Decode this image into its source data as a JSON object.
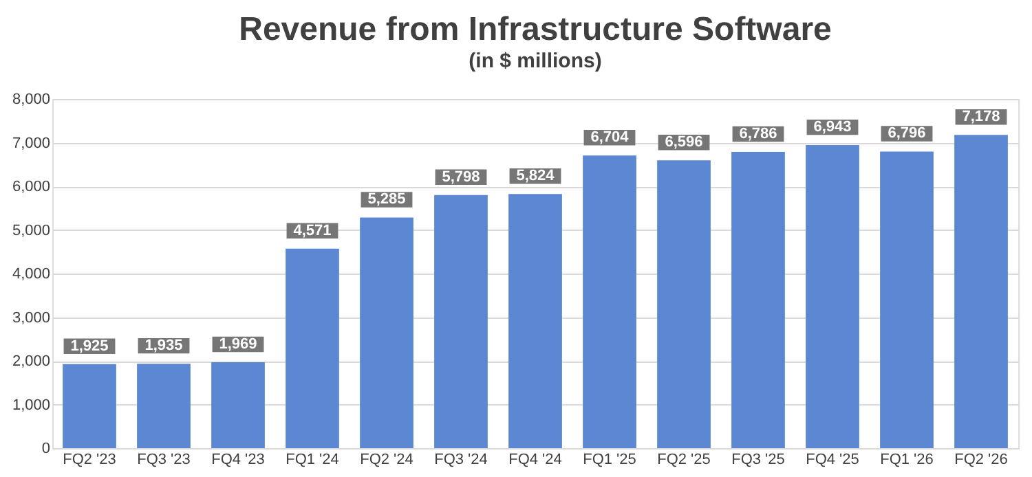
{
  "chart_data": {
    "type": "bar",
    "title": "Revenue from Infrastructure Software",
    "subtitle": "(in $ millions)",
    "categories": [
      "FQ2 '23",
      "FQ3 '23",
      "FQ4 '23",
      "FQ1 '24",
      "FQ2 '24",
      "FQ3 '24",
      "FQ4 '24",
      "FQ1 '25",
      "FQ2 '25",
      "FQ3 '25",
      "FQ4 '25",
      "FQ1 '26",
      "FQ2 '26"
    ],
    "values": [
      1925,
      1935,
      1969,
      4571,
      5285,
      5798,
      5824,
      6704,
      6596,
      6786,
      6943,
      6796,
      7178
    ],
    "value_labels": [
      "1,925",
      "1,935",
      "1,969",
      "4,571",
      "5,285",
      "5,798",
      "5,824",
      "6,704",
      "6,596",
      "6,786",
      "6,943",
      "6,796",
      "7,178"
    ],
    "color": "#5b87d3",
    "ylim": [
      0,
      8000
    ],
    "yticks": [
      0,
      {
        "value": 1000,
        "label": "1,000"
      },
      {
        "value": 2000,
        "label": "2,000"
      },
      {
        "value": 3000,
        "label": "3,000"
      },
      {
        "value": 4000,
        "label": "4,000"
      },
      {
        "value": 5000,
        "label": "5,000"
      },
      {
        "value": 6000,
        "label": "6,000"
      },
      {
        "value": 7000,
        "label": "7,000"
      },
      {
        "value": 8000,
        "label": "8,000"
      }
    ],
    "grid": "y"
  }
}
